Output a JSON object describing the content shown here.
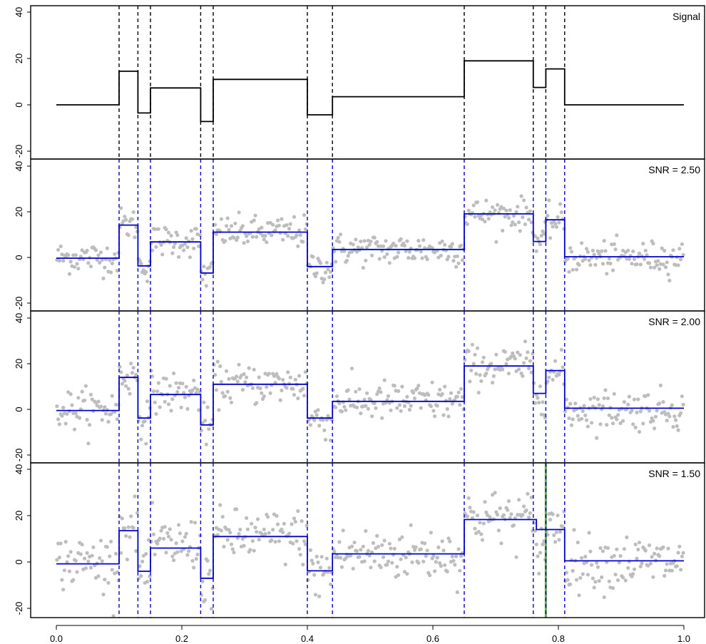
{
  "chart_data": {
    "type": "line",
    "xlim": [
      0,
      1
    ],
    "x_ticks": [
      "0.0",
      "0.2",
      "0.4",
      "0.6",
      "0.8",
      "1.0"
    ],
    "y_ticks": [
      "-20",
      "0",
      "20",
      "40"
    ],
    "changepoints": [
      0.1,
      0.13,
      0.15,
      0.23,
      0.25,
      0.4,
      0.44,
      0.65,
      0.76,
      0.78,
      0.81
    ],
    "colors": {
      "signal": "#000000",
      "fit": "#0000cc",
      "points": "#bdbdbd",
      "changepoint_true": "#000000",
      "changepoint_dashed": "#0000cc",
      "highlight": "#6aa84f"
    },
    "panels": [
      {
        "label": "Signal",
        "ylim": [
          -25,
          42
        ],
        "segments": [
          {
            "x0": 0.0,
            "x1": 0.1,
            "y": 0
          },
          {
            "x0": 0.1,
            "x1": 0.13,
            "y": 14.5
          },
          {
            "x0": 0.13,
            "x1": 0.15,
            "y": -3.5
          },
          {
            "x0": 0.15,
            "x1": 0.23,
            "y": 7.3
          },
          {
            "x0": 0.23,
            "x1": 0.25,
            "y": -7.2
          },
          {
            "x0": 0.25,
            "x1": 0.4,
            "y": 11
          },
          {
            "x0": 0.4,
            "x1": 0.44,
            "y": -4.3
          },
          {
            "x0": 0.44,
            "x1": 0.65,
            "y": 3.5
          },
          {
            "x0": 0.65,
            "x1": 0.76,
            "y": 19
          },
          {
            "x0": 0.76,
            "x1": 0.78,
            "y": 7.5
          },
          {
            "x0": 0.78,
            "x1": 0.81,
            "y": 15.5
          },
          {
            "x0": 0.81,
            "x1": 1.0,
            "y": 0
          }
        ]
      },
      {
        "label": "SNR = 2.50",
        "ylim": [
          -25,
          42
        ],
        "noise_sd": 3.5,
        "segments": [
          {
            "x0": 0.0,
            "x1": 0.1,
            "y": -0.3
          },
          {
            "x0": 0.1,
            "x1": 0.13,
            "y": 14.2
          },
          {
            "x0": 0.13,
            "x1": 0.15,
            "y": -3.7
          },
          {
            "x0": 0.15,
            "x1": 0.23,
            "y": 6.8
          },
          {
            "x0": 0.23,
            "x1": 0.25,
            "y": -6.8
          },
          {
            "x0": 0.25,
            "x1": 0.4,
            "y": 11.1
          },
          {
            "x0": 0.4,
            "x1": 0.44,
            "y": -4.0
          },
          {
            "x0": 0.44,
            "x1": 0.65,
            "y": 3.5
          },
          {
            "x0": 0.65,
            "x1": 0.76,
            "y": 19.1
          },
          {
            "x0": 0.76,
            "x1": 0.78,
            "y": 7.0
          },
          {
            "x0": 0.78,
            "x1": 0.81,
            "y": 16.5
          },
          {
            "x0": 0.81,
            "x1": 1.0,
            "y": 0.3
          }
        ]
      },
      {
        "label": "SNR = 2.00",
        "ylim": [
          -25,
          42
        ],
        "noise_sd": 4.4,
        "segments": [
          {
            "x0": 0.0,
            "x1": 0.1,
            "y": -0.5
          },
          {
            "x0": 0.1,
            "x1": 0.13,
            "y": 14.0
          },
          {
            "x0": 0.13,
            "x1": 0.15,
            "y": -3.8
          },
          {
            "x0": 0.15,
            "x1": 0.23,
            "y": 6.5
          },
          {
            "x0": 0.23,
            "x1": 0.25,
            "y": -6.8
          },
          {
            "x0": 0.25,
            "x1": 0.4,
            "y": 11.0
          },
          {
            "x0": 0.4,
            "x1": 0.44,
            "y": -3.8
          },
          {
            "x0": 0.44,
            "x1": 0.65,
            "y": 3.5
          },
          {
            "x0": 0.65,
            "x1": 0.76,
            "y": 19.0
          },
          {
            "x0": 0.76,
            "x1": 0.78,
            "y": 7.0
          },
          {
            "x0": 0.78,
            "x1": 0.81,
            "y": 17.0
          },
          {
            "x0": 0.81,
            "x1": 1.0,
            "y": 0.5
          }
        ]
      },
      {
        "label": "SNR = 1.50",
        "ylim": [
          -25,
          42
        ],
        "noise_sd": 5.8,
        "highlight_x": 0.78,
        "segments": [
          {
            "x0": 0.0,
            "x1": 0.1,
            "y": -0.8
          },
          {
            "x0": 0.1,
            "x1": 0.13,
            "y": 13.5
          },
          {
            "x0": 0.13,
            "x1": 0.15,
            "y": -4.0
          },
          {
            "x0": 0.15,
            "x1": 0.23,
            "y": 6.0
          },
          {
            "x0": 0.23,
            "x1": 0.25,
            "y": -7.0
          },
          {
            "x0": 0.25,
            "x1": 0.4,
            "y": 11.0
          },
          {
            "x0": 0.4,
            "x1": 0.44,
            "y": -3.8
          },
          {
            "x0": 0.44,
            "x1": 0.65,
            "y": 3.5
          },
          {
            "x0": 0.65,
            "x1": 0.765,
            "y": 18.3
          },
          {
            "x0": 0.765,
            "x1": 0.81,
            "y": 14.0
          },
          {
            "x0": 0.81,
            "x1": 1.0,
            "y": 0.5
          }
        ]
      }
    ]
  }
}
